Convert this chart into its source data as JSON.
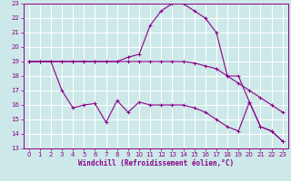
{
  "xlabel": "Windchill (Refroidissement éolien,°C)",
  "background_color": "#cce8e8",
  "grid_color": "#ffffff",
  "line_color": "#8b008b",
  "xlim": [
    -0.5,
    23.5
  ],
  "ylim": [
    13,
    23
  ],
  "xticks": [
    0,
    1,
    2,
    3,
    4,
    5,
    6,
    7,
    8,
    9,
    10,
    11,
    12,
    13,
    14,
    15,
    16,
    17,
    18,
    19,
    20,
    21,
    22,
    23
  ],
  "yticks": [
    13,
    14,
    15,
    16,
    17,
    18,
    19,
    20,
    21,
    22,
    23
  ],
  "line1_x": [
    0,
    1,
    2,
    3,
    4,
    5,
    6,
    7,
    8,
    9,
    10,
    11,
    12,
    13,
    14,
    15,
    16,
    17,
    18,
    19,
    20,
    21,
    22,
    23
  ],
  "line1_y": [
    19.0,
    19.0,
    19.0,
    19.0,
    19.0,
    19.0,
    19.0,
    19.0,
    19.0,
    19.3,
    19.5,
    21.5,
    22.5,
    23.0,
    23.0,
    22.5,
    22.0,
    21.0,
    18.0,
    18.0,
    16.2,
    14.5,
    14.2,
    13.5
  ],
  "line2_x": [
    0,
    1,
    2,
    3,
    4,
    5,
    6,
    7,
    8,
    9,
    10,
    11,
    12,
    13,
    14,
    15,
    16,
    17,
    18,
    19,
    20,
    21,
    22,
    23
  ],
  "line2_y": [
    19.0,
    19.0,
    19.0,
    19.0,
    19.0,
    19.0,
    19.0,
    19.0,
    19.0,
    19.0,
    19.0,
    19.0,
    19.0,
    19.0,
    19.0,
    18.9,
    18.7,
    18.5,
    18.0,
    17.5,
    17.0,
    16.5,
    16.0,
    15.5
  ],
  "line3_x": [
    0,
    1,
    2,
    3,
    4,
    5,
    6,
    7,
    8,
    9,
    10,
    11,
    12,
    13,
    14,
    15,
    16,
    17,
    18,
    19,
    20,
    21,
    22,
    23
  ],
  "line3_y": [
    19.0,
    19.0,
    19.0,
    17.0,
    15.8,
    16.0,
    16.1,
    14.8,
    16.3,
    15.5,
    16.2,
    16.0,
    16.0,
    16.0,
    16.0,
    15.8,
    15.5,
    15.0,
    14.5,
    14.2,
    16.2,
    14.5,
    14.2,
    13.5
  ]
}
